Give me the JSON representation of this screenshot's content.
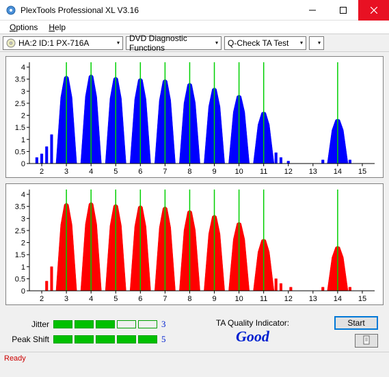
{
  "window": {
    "title": "PlexTools Professional XL V3.16"
  },
  "menu": {
    "options": "Options",
    "help": "Help"
  },
  "toolbar": {
    "drive": "HA:2 ID:1  PX-716A",
    "dropdown1": "DVD Diagnostic Functions",
    "dropdown2": "Q-Check TA Test"
  },
  "charts": {
    "x_ticks": [
      2,
      3,
      4,
      5,
      6,
      7,
      8,
      9,
      10,
      11,
      12,
      13,
      14,
      15
    ],
    "y_ticks": [
      0,
      0.5,
      1,
      1.5,
      2,
      2.5,
      3,
      3.5,
      4
    ],
    "xlim": [
      1.5,
      15.5
    ],
    "ylim": [
      0,
      4.2
    ],
    "vline_positions": [
      3,
      4,
      5,
      6,
      7,
      8,
      9,
      10,
      11,
      14
    ],
    "vline_color": "#00d000",
    "grid_color": "#c0c0c0",
    "axis_color": "#000000",
    "bg_color": "#ffffff",
    "tick_fontsize": 11,
    "top": {
      "color": "#0000ff",
      "peaks": [
        {
          "c": 3.0,
          "h": 3.65
        },
        {
          "c": 4.0,
          "h": 3.7
        },
        {
          "c": 5.0,
          "h": 3.6
        },
        {
          "c": 6.0,
          "h": 3.55
        },
        {
          "c": 7.0,
          "h": 3.5
        },
        {
          "c": 8.0,
          "h": 3.35
        },
        {
          "c": 9.0,
          "h": 3.15
        },
        {
          "c": 10.0,
          "h": 2.85
        },
        {
          "c": 11.0,
          "h": 2.15
        },
        {
          "c": 14.0,
          "h": 1.85
        }
      ],
      "half_width": 0.42,
      "pre_spikes": [
        {
          "x": 1.8,
          "h": 0.25
        },
        {
          "x": 2.0,
          "h": 0.4
        },
        {
          "x": 2.2,
          "h": 0.7
        },
        {
          "x": 2.4,
          "h": 1.2
        }
      ],
      "tail_spikes": [
        {
          "x": 11.5,
          "h": 0.45
        },
        {
          "x": 11.7,
          "h": 0.25
        },
        {
          "x": 12.0,
          "h": 0.1
        },
        {
          "x": 13.4,
          "h": 0.15
        },
        {
          "x": 14.5,
          "h": 0.15
        }
      ]
    },
    "bottom": {
      "color": "#ff0000",
      "peaks": [
        {
          "c": 3.0,
          "h": 3.65
        },
        {
          "c": 4.0,
          "h": 3.68
        },
        {
          "c": 5.0,
          "h": 3.6
        },
        {
          "c": 6.0,
          "h": 3.55
        },
        {
          "c": 7.0,
          "h": 3.5
        },
        {
          "c": 8.0,
          "h": 3.35
        },
        {
          "c": 9.0,
          "h": 3.15
        },
        {
          "c": 10.0,
          "h": 2.85
        },
        {
          "c": 11.0,
          "h": 2.15
        },
        {
          "c": 14.0,
          "h": 1.85
        }
      ],
      "half_width": 0.42,
      "pre_spikes": [
        {
          "x": 2.2,
          "h": 0.4
        },
        {
          "x": 2.4,
          "h": 1.0
        }
      ],
      "tail_spikes": [
        {
          "x": 11.5,
          "h": 0.5
        },
        {
          "x": 11.7,
          "h": 0.3
        },
        {
          "x": 12.1,
          "h": 0.15
        },
        {
          "x": 13.4,
          "h": 0.15
        },
        {
          "x": 14.5,
          "h": 0.15
        }
      ]
    }
  },
  "indicators": {
    "jitter": {
      "label": "Jitter",
      "filled": 3,
      "total": 5,
      "value": "3"
    },
    "peakshift": {
      "label": "Peak Shift",
      "filled": 5,
      "total": 5,
      "value": "5"
    },
    "quality_label": "TA Quality Indicator:",
    "quality_value": "Good",
    "box_fill_color": "#00c000",
    "box_border_color": "#00a000",
    "value_color": "#0020d0"
  },
  "buttons": {
    "start": "Start"
  },
  "status": {
    "text": "Ready"
  }
}
